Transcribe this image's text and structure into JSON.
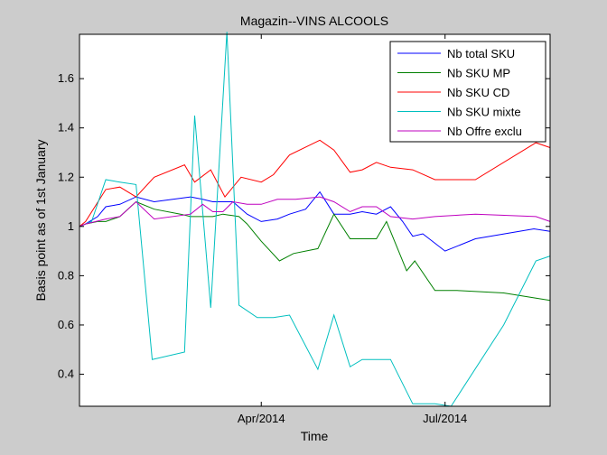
{
  "chart_data": {
    "type": "line",
    "title": "Magazin--VINS ALCOOLS",
    "xlabel": "Time",
    "ylabel": "Basis point as of 1st January",
    "x_ticks": [
      "Apr/2014",
      "Jul/2014"
    ],
    "x_tick_days": [
      90,
      181
    ],
    "xlim_days": [
      0,
      233
    ],
    "ylim": [
      0.27,
      1.78
    ],
    "y_ticks": [
      0.4,
      0.6,
      0.8,
      1,
      1.2,
      1.4,
      1.6
    ],
    "y_tick_labels": [
      "0.4",
      "0.6",
      "0.8",
      "1",
      "1.2",
      "1.4",
      "1.6"
    ],
    "grid": false,
    "legend_position": "top-right",
    "series": [
      {
        "name": "Nb total SKU",
        "color": "#0000ff",
        "points": [
          [
            0,
            1.0
          ],
          [
            3,
            1.01
          ],
          [
            9,
            1.04
          ],
          [
            13,
            1.08
          ],
          [
            20,
            1.09
          ],
          [
            28,
            1.12
          ],
          [
            37,
            1.1
          ],
          [
            55,
            1.12
          ],
          [
            61,
            1.11
          ],
          [
            66,
            1.1
          ],
          [
            70,
            1.1
          ],
          [
            76,
            1.1
          ],
          [
            83,
            1.05
          ],
          [
            90,
            1.02
          ],
          [
            98,
            1.03
          ],
          [
            104,
            1.05
          ],
          [
            112,
            1.07
          ],
          [
            119,
            1.14
          ],
          [
            126,
            1.05
          ],
          [
            134,
            1.05
          ],
          [
            140,
            1.06
          ],
          [
            147,
            1.05
          ],
          [
            154,
            1.08
          ],
          [
            160,
            1.02
          ],
          [
            165,
            0.96
          ],
          [
            170,
            0.97
          ],
          [
            181,
            0.9
          ],
          [
            196,
            0.95
          ],
          [
            225,
            0.99
          ],
          [
            233,
            0.98
          ]
        ]
      },
      {
        "name": "Nb SKU MP",
        "color": "#008000",
        "points": [
          [
            0,
            1.0
          ],
          [
            3,
            1.01
          ],
          [
            9,
            1.02
          ],
          [
            13,
            1.02
          ],
          [
            20,
            1.04
          ],
          [
            28,
            1.1
          ],
          [
            37,
            1.07
          ],
          [
            50,
            1.05
          ],
          [
            55,
            1.04
          ],
          [
            61,
            1.04
          ],
          [
            66,
            1.04
          ],
          [
            71,
            1.05
          ],
          [
            79,
            1.04
          ],
          [
            83,
            1.01
          ],
          [
            90,
            0.94
          ],
          [
            99,
            0.86
          ],
          [
            106,
            0.89
          ],
          [
            118,
            0.91
          ],
          [
            126,
            1.05
          ],
          [
            134,
            0.95
          ],
          [
            140,
            0.95
          ],
          [
            147,
            0.95
          ],
          [
            152,
            1.02
          ],
          [
            162,
            0.82
          ],
          [
            166,
            0.86
          ],
          [
            176,
            0.74
          ],
          [
            187,
            0.74
          ],
          [
            210,
            0.73
          ],
          [
            233,
            0.7
          ]
        ]
      },
      {
        "name": "Nb SKU CD",
        "color": "#ff0000",
        "points": [
          [
            0,
            1.0
          ],
          [
            3,
            1.02
          ],
          [
            13,
            1.15
          ],
          [
            20,
            1.16
          ],
          [
            28,
            1.12
          ],
          [
            37,
            1.2
          ],
          [
            52,
            1.25
          ],
          [
            57,
            1.18
          ],
          [
            65,
            1.23
          ],
          [
            72,
            1.12
          ],
          [
            80,
            1.2
          ],
          [
            90,
            1.18
          ],
          [
            96,
            1.21
          ],
          [
            104,
            1.29
          ],
          [
            119,
            1.35
          ],
          [
            126,
            1.31
          ],
          [
            134,
            1.22
          ],
          [
            140,
            1.23
          ],
          [
            147,
            1.26
          ],
          [
            154,
            1.24
          ],
          [
            165,
            1.23
          ],
          [
            176,
            1.19
          ],
          [
            196,
            1.19
          ],
          [
            226,
            1.34
          ],
          [
            233,
            1.32
          ]
        ]
      },
      {
        "name": "Nb SKU mixte",
        "color": "#00bfbf",
        "points": [
          [
            0,
            1.0
          ],
          [
            6,
            1.02
          ],
          [
            13,
            1.19
          ],
          [
            20,
            1.18
          ],
          [
            28,
            1.17
          ],
          [
            36,
            0.46
          ],
          [
            52,
            0.49
          ],
          [
            57,
            1.45
          ],
          [
            65,
            0.67
          ],
          [
            73,
            1.79
          ],
          [
            79,
            0.68
          ],
          [
            88,
            0.63
          ],
          [
            96,
            0.63
          ],
          [
            104,
            0.64
          ],
          [
            118,
            0.42
          ],
          [
            126,
            0.64
          ],
          [
            134,
            0.43
          ],
          [
            140,
            0.46
          ],
          [
            147,
            0.46
          ],
          [
            154,
            0.46
          ],
          [
            165,
            0.28
          ],
          [
            176,
            0.28
          ],
          [
            184,
            0.27
          ],
          [
            210,
            0.6
          ],
          [
            226,
            0.86
          ],
          [
            233,
            0.88
          ]
        ]
      },
      {
        "name": "Nb Offre exclu",
        "color": "#bf00bf",
        "points": [
          [
            0,
            1.0
          ],
          [
            3,
            1.01
          ],
          [
            13,
            1.03
          ],
          [
            20,
            1.04
          ],
          [
            28,
            1.1
          ],
          [
            37,
            1.03
          ],
          [
            55,
            1.05
          ],
          [
            61,
            1.09
          ],
          [
            66,
            1.06
          ],
          [
            71,
            1.06
          ],
          [
            76,
            1.1
          ],
          [
            83,
            1.09
          ],
          [
            90,
            1.09
          ],
          [
            98,
            1.11
          ],
          [
            107,
            1.11
          ],
          [
            119,
            1.12
          ],
          [
            126,
            1.1
          ],
          [
            134,
            1.06
          ],
          [
            140,
            1.08
          ],
          [
            147,
            1.08
          ],
          [
            154,
            1.04
          ],
          [
            165,
            1.03
          ],
          [
            176,
            1.04
          ],
          [
            196,
            1.05
          ],
          [
            226,
            1.04
          ],
          [
            233,
            1.02
          ]
        ]
      }
    ]
  }
}
